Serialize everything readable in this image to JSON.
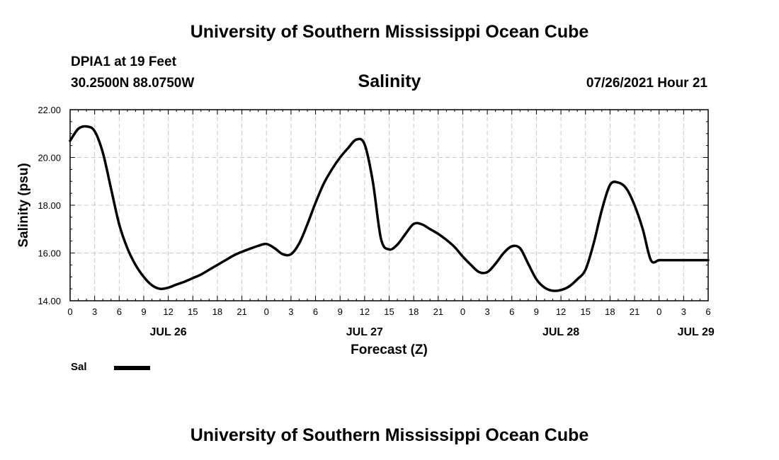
{
  "header": {
    "title": "University of Southern Mississippi Ocean Cube"
  },
  "station": {
    "name": "DPIA1 at 19 Feet",
    "coords": "30.2500N  88.0750W",
    "variable": "Salinity",
    "timestamp": "07/26/2021 Hour 21"
  },
  "footer": {
    "title": "University of Southern Mississippi Ocean Cube"
  },
  "legend": {
    "label": "Sal",
    "color": "#000000"
  },
  "chart_data": {
    "type": "line",
    "title": "Salinity",
    "xlabel": "Forecast (Z)",
    "ylabel": "Salinity (psu)",
    "xlim": [
      0,
      78
    ],
    "ylim": [
      14.0,
      22.0
    ],
    "yticks": [
      "14.00",
      "16.00",
      "18.00",
      "20.00",
      "22.00"
    ],
    "x_hours": [
      0,
      3,
      6,
      9,
      12,
      15,
      18,
      21,
      24,
      27,
      30,
      33,
      36,
      39,
      42,
      45,
      48,
      51,
      54,
      57,
      60,
      63,
      66,
      69,
      72,
      75,
      78
    ],
    "xtick_labels": [
      "0",
      "3",
      "6",
      "9",
      "12",
      "15",
      "18",
      "21",
      "0",
      "3",
      "6",
      "9",
      "12",
      "15",
      "18",
      "21",
      "0",
      "3",
      "6",
      "9",
      "12",
      "15",
      "18",
      "21",
      "0",
      "3",
      "6"
    ],
    "day_labels": [
      {
        "hour": 12,
        "label": "JUL 26"
      },
      {
        "hour": 36,
        "label": "JUL 27"
      },
      {
        "hour": 60,
        "label": "JUL 28"
      },
      {
        "hour": 76.5,
        "label": "JUL 29"
      }
    ],
    "grid": true,
    "legend_position": "bottom-left",
    "series": [
      {
        "name": "Sal",
        "color": "#000000",
        "x": [
          0,
          1,
          2,
          3,
          4,
          5,
          6,
          7,
          8,
          9,
          10,
          11,
          12,
          13,
          14,
          15,
          16,
          17,
          18,
          19,
          20,
          21,
          22,
          23,
          24,
          25,
          26,
          27,
          28,
          29,
          30,
          31,
          32,
          33,
          34,
          35,
          36,
          37,
          38,
          39,
          40,
          41,
          42,
          43,
          44,
          45,
          46,
          47,
          48,
          49,
          50,
          51,
          52,
          53,
          54,
          55,
          56,
          57,
          58,
          59,
          60,
          61,
          62,
          63,
          64,
          65,
          66,
          67,
          68,
          69,
          70,
          71,
          72,
          73,
          74,
          75,
          76,
          77,
          78
        ],
        "values": [
          20.7,
          21.2,
          21.3,
          21.1,
          20.2,
          18.7,
          17.2,
          16.2,
          15.5,
          15.0,
          14.65,
          14.5,
          14.55,
          14.68,
          14.8,
          14.95,
          15.1,
          15.3,
          15.5,
          15.7,
          15.9,
          16.05,
          16.18,
          16.3,
          16.38,
          16.2,
          15.95,
          15.95,
          16.4,
          17.2,
          18.1,
          18.9,
          19.5,
          20.0,
          20.4,
          20.75,
          20.55,
          19.0,
          16.6,
          16.15,
          16.35,
          16.8,
          17.22,
          17.2,
          17.0,
          16.8,
          16.55,
          16.25,
          15.85,
          15.5,
          15.2,
          15.2,
          15.55,
          16.0,
          16.28,
          16.2,
          15.55,
          14.9,
          14.55,
          14.42,
          14.45,
          14.6,
          14.9,
          15.3,
          16.4,
          17.8,
          18.85,
          18.95,
          18.7,
          18.0,
          17.0,
          15.7,
          15.7,
          15.7,
          15.7,
          15.7,
          15.7,
          15.7,
          15.7
        ]
      }
    ]
  }
}
